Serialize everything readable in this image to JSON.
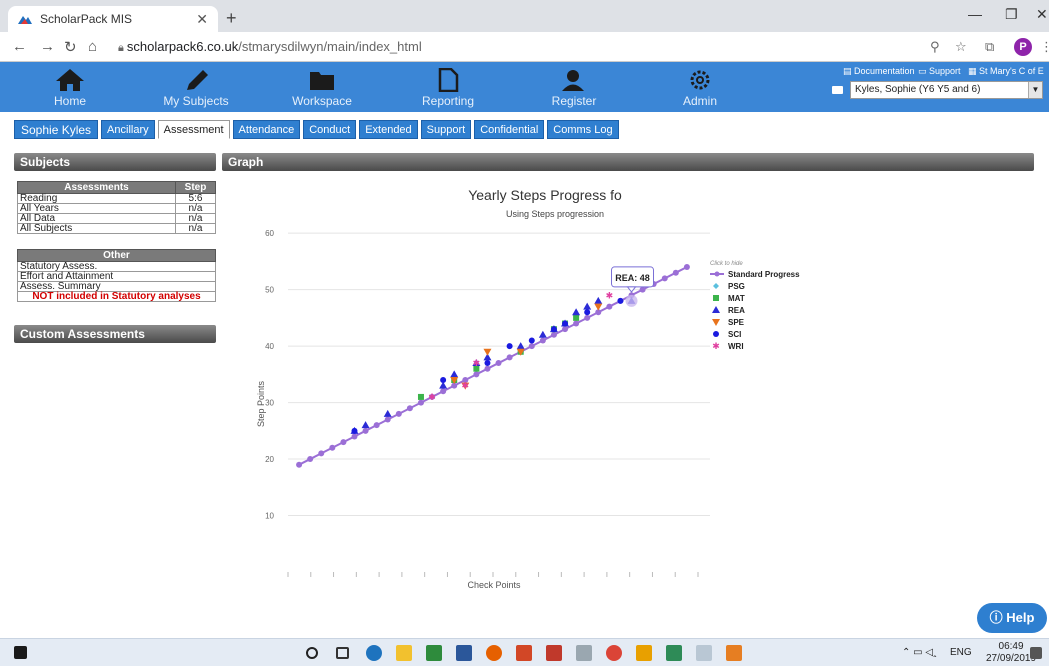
{
  "browser": {
    "tab_title": "ScholarPack MIS",
    "url_host": "scholarpack6.co.uk",
    "url_path": "/stmarysdilwyn/main/index_html"
  },
  "nav": {
    "items": [
      "Home",
      "My Subjects",
      "Workspace",
      "Reporting",
      "Register",
      "Admin"
    ],
    "documentation": "Documentation",
    "support": "Support",
    "school": "St Mary's C of E ...",
    "pupil_select": "Kyles, Sophie (Y6 Y5 and 6)"
  },
  "pupil_tabs": [
    "Sophie Kyles",
    "Ancillary",
    "Assessment",
    "Attendance",
    "Conduct",
    "Extended",
    "Support",
    "Confidential",
    "Comms Log"
  ],
  "active_tab": "Assessment",
  "subjects_panel": {
    "title": "Subjects",
    "col_assessments": "Assessments",
    "col_step": "Step",
    "rows": [
      {
        "label": "Reading",
        "value": "5:6"
      },
      {
        "label": "All Years",
        "value": "n/a"
      },
      {
        "label": "All Data",
        "value": "n/a"
      },
      {
        "label": "All Subjects",
        "value": "n/a"
      }
    ],
    "other_header": "Other",
    "other_rows": [
      "Statutory Assess.",
      "Effort and Attainment",
      "Assess. Summary"
    ],
    "warning": "NOT included in Statutory analyses"
  },
  "custom_panel": {
    "title": "Custom Assessments"
  },
  "graph_panel": {
    "title": "Graph"
  },
  "chart_data": {
    "type": "line",
    "title": "Yearly Steps Progress fo",
    "subtitle": "Using Steps progression",
    "ylabel": "Step Points",
    "xlabel": "Check Points",
    "ylim": [
      0,
      60
    ],
    "yticks": [
      10,
      20,
      30,
      40,
      50,
      60
    ],
    "legend_hint": "Click to hide",
    "tooltip": "REA: 48",
    "series": [
      {
        "name": "Standard Progress",
        "color": "#9b6fd6",
        "marker": "circle",
        "x": [
          1,
          2,
          3,
          4,
          5,
          6,
          7,
          8,
          9,
          10,
          11,
          12,
          13,
          14,
          15,
          16,
          17,
          18,
          19,
          20,
          21,
          22,
          23,
          24,
          25,
          26,
          27,
          28,
          29,
          30,
          31,
          32,
          33,
          34,
          35,
          36
        ],
        "y": [
          19,
          20,
          21,
          22,
          23,
          24,
          25,
          26,
          27,
          28,
          29,
          30,
          31,
          32,
          33,
          34,
          35,
          36,
          37,
          38,
          39,
          40,
          41,
          42,
          43,
          44,
          45,
          46,
          47,
          48,
          49,
          50,
          51,
          52,
          53,
          54
        ]
      },
      {
        "name": "PSG",
        "color": "#5bc0de",
        "marker": "diamond",
        "x": [],
        "y": []
      },
      {
        "name": "MAT",
        "color": "#3cb44b",
        "marker": "square",
        "x": [
          12,
          15,
          17,
          21,
          24,
          25,
          26
        ],
        "y": [
          31,
          34,
          36,
          39,
          43,
          44,
          45
        ]
      },
      {
        "name": "REA",
        "color": "#2b2bd6",
        "marker": "triangle-up",
        "x": [
          6,
          7,
          9,
          14,
          15,
          17,
          18,
          21,
          23,
          24,
          25,
          26,
          27,
          28,
          31
        ],
        "y": [
          25,
          26,
          28,
          33,
          35,
          37,
          38,
          40,
          42,
          43,
          44,
          46,
          47,
          48,
          48
        ]
      },
      {
        "name": "SPE",
        "color": "#e8731c",
        "marker": "triangle-down",
        "x": [
          15,
          16,
          18,
          21,
          28
        ],
        "y": [
          34,
          33,
          39,
          39,
          47
        ]
      },
      {
        "name": "SCI",
        "color": "#1a1ae0",
        "marker": "circle",
        "x": [
          6,
          14,
          18,
          20,
          22,
          24,
          25,
          27,
          30
        ],
        "y": [
          25,
          34,
          37,
          40,
          41,
          43,
          44,
          46,
          48
        ]
      },
      {
        "name": "WRI",
        "color": "#e040a0",
        "marker": "star",
        "x": [
          13,
          16,
          17,
          29
        ],
        "y": [
          31,
          33,
          37,
          49
        ]
      }
    ]
  },
  "help_label": "Help",
  "taskbar": {
    "lang": "ENG",
    "time": "06:49",
    "date": "27/09/2019"
  }
}
